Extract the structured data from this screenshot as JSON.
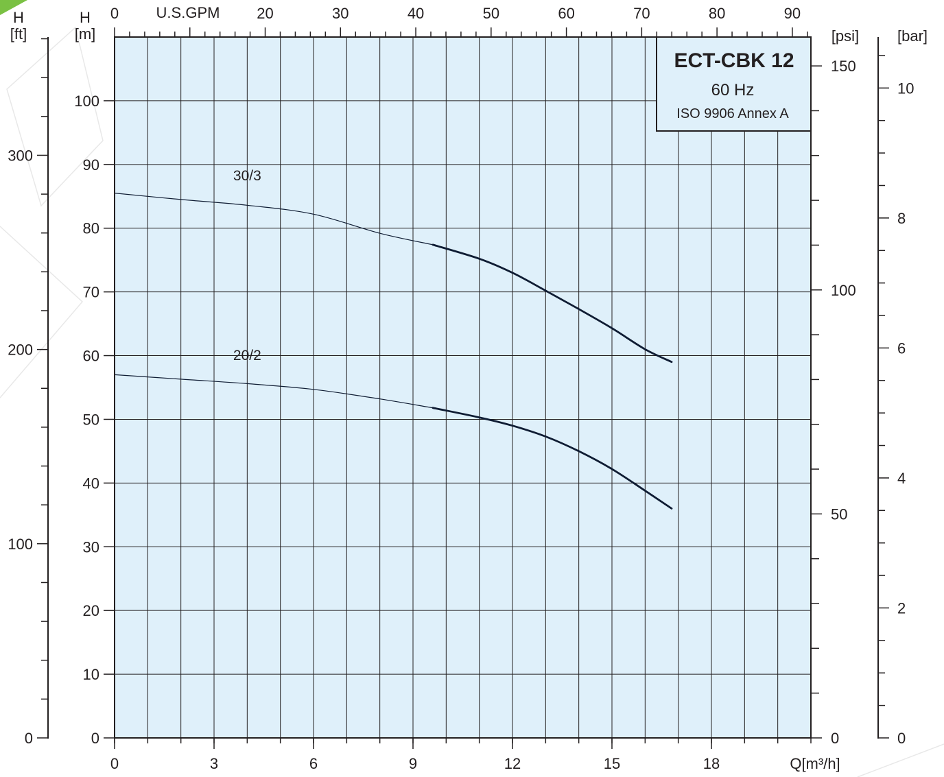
{
  "colors": {
    "plot_background": "#dff0fa",
    "ink": "#231f20",
    "curve": "#0f1c33",
    "accent_corner": "#7ac143",
    "watermark": "#e6e6e6"
  },
  "chart_data": {
    "type": "line",
    "title": "ECT-CBK 12",
    "subtitle_lines": [
      "60 Hz",
      "ISO 9906 Annex A"
    ],
    "xlabel": "Q[m³/h]",
    "xlim": [
      0,
      21
    ],
    "x_ticks": [
      0,
      3,
      6,
      9,
      12,
      15,
      18
    ],
    "x_grid_step": 1,
    "x_top": {
      "label": "U.S.GPM",
      "ticks": [
        0,
        20,
        30,
        40,
        50,
        60,
        70,
        80,
        90
      ],
      "m3h_per_gpm": 0.2271
    },
    "y_left_m": {
      "label_lines": [
        "H",
        "[m]"
      ],
      "ylim": [
        0,
        110
      ],
      "ticks": [
        0,
        10,
        20,
        30,
        40,
        50,
        60,
        70,
        80,
        90,
        100
      ]
    },
    "y_left_ft": {
      "label_lines": [
        "H",
        "[ft]"
      ],
      "ticks": [
        0,
        100,
        200,
        300
      ],
      "m_per_ft": 0.3048
    },
    "y_right_psi": {
      "label": "[psi]",
      "ticks": [
        0,
        50,
        100,
        150
      ],
      "m_per_psi": 0.7031
    },
    "y_right_bar": {
      "label": "[bar]",
      "ticks": [
        0,
        2,
        4,
        6,
        8,
        10
      ],
      "m_per_bar": 10.2
    },
    "grid": true,
    "series": [
      {
        "name": "30/3",
        "x": [
          0,
          2,
          4,
          6,
          8,
          9.6,
          11,
          12,
          13,
          14,
          15,
          16,
          16.8
        ],
        "y": [
          85.5,
          84.5,
          83.6,
          82.2,
          79.2,
          77.4,
          75.2,
          73.0,
          70.2,
          67.3,
          64.3,
          61.0,
          59.0
        ],
        "bold_from_x": 9.6,
        "label_at": [
          4,
          87.5
        ]
      },
      {
        "name": "20/2",
        "x": [
          0,
          2,
          4,
          6,
          8,
          9.6,
          11,
          12,
          13,
          14,
          15,
          16,
          16.8
        ],
        "y": [
          57.0,
          56.3,
          55.6,
          54.7,
          53.2,
          51.8,
          50.3,
          49.0,
          47.3,
          45.0,
          42.2,
          38.8,
          36.0
        ],
        "bold_from_x": 9.6,
        "label_at": [
          4,
          59.3
        ]
      }
    ]
  }
}
